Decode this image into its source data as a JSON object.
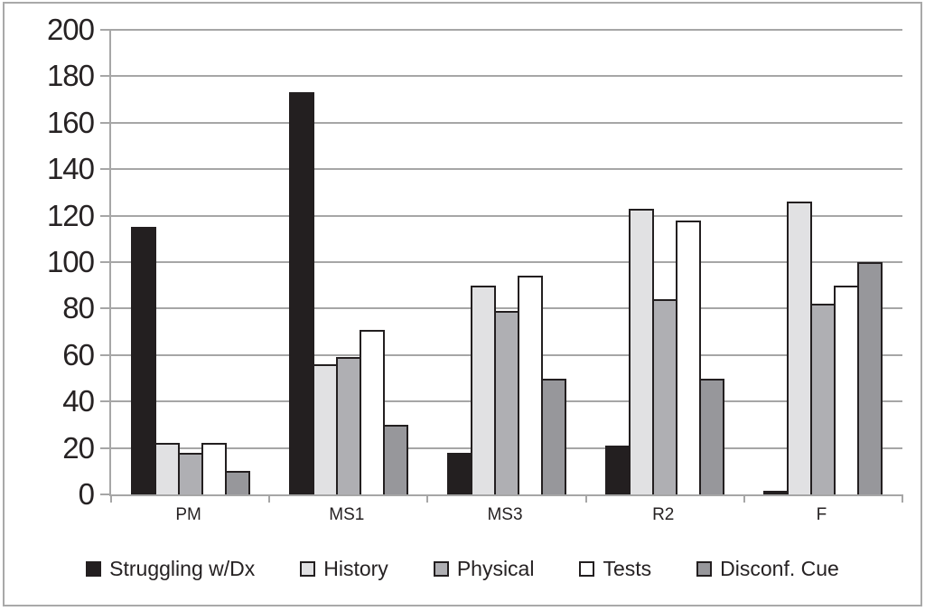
{
  "chart_data": {
    "type": "bar",
    "title": "",
    "categories": [
      "PM",
      "MS1",
      "MS3",
      "R2",
      "F"
    ],
    "series": [
      {
        "name": "Struggling w/Dx",
        "color": "#231f20",
        "values": [
          115,
          173,
          18,
          21,
          1
        ]
      },
      {
        "name": "History",
        "color": "#e1e1e3",
        "values": [
          22,
          56,
          90,
          123,
          126
        ]
      },
      {
        "name": "Physical",
        "color": "#afafb3",
        "values": [
          18,
          59,
          79,
          84,
          82
        ]
      },
      {
        "name": "Tests",
        "color": "#ffffff",
        "values": [
          22,
          71,
          94,
          118,
          90
        ]
      },
      {
        "name": "Disconf. Cue",
        "color": "#97979b",
        "values": [
          10,
          30,
          50,
          50,
          100
        ]
      }
    ],
    "xlabel": "",
    "ylabel": "",
    "ylim": [
      0,
      200
    ],
    "ytick_interval": 20,
    "yticks": [
      0,
      20,
      40,
      60,
      80,
      100,
      120,
      140,
      160,
      180,
      200
    ],
    "grid": true,
    "legend_position": "bottom",
    "colors": {
      "axis": "#a6a6a6",
      "gridline": "#a6a6a6",
      "bar_border": "#231f20",
      "text": "#262223",
      "frame_border": "#a9a9a9",
      "background": "#ffffff"
    }
  }
}
